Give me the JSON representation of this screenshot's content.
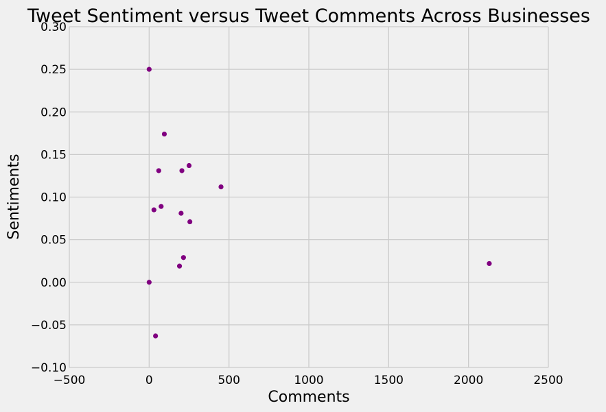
{
  "chart_data": {
    "type": "scatter",
    "title": "Tweet Sentiment versus Tweet Comments Across Businesses",
    "xlabel": "Comments",
    "ylabel": "Sentiments",
    "xlim": [
      -500,
      2500
    ],
    "ylim": [
      -0.1,
      0.3
    ],
    "x_ticks": [
      -500,
      0,
      500,
      1000,
      1500,
      2000,
      2500
    ],
    "x_tick_labels": [
      "−500",
      "0",
      "500",
      "1000",
      "1500",
      "2000",
      "2500"
    ],
    "y_ticks": [
      -0.1,
      -0.05,
      0.0,
      0.05,
      0.1,
      0.15,
      0.2,
      0.25,
      0.3
    ],
    "y_tick_labels": [
      "−0.10",
      "−0.05",
      "0.00",
      "0.05",
      "0.10",
      "0.15",
      "0.20",
      "0.25",
      "0.30"
    ],
    "grid": true,
    "point_color": "#800080",
    "points": [
      {
        "x": 0,
        "y": 0.25
      },
      {
        "x": 95,
        "y": 0.174
      },
      {
        "x": 60,
        "y": 0.131
      },
      {
        "x": 205,
        "y": 0.131
      },
      {
        "x": 250,
        "y": 0.137
      },
      {
        "x": 450,
        "y": 0.112
      },
      {
        "x": 30,
        "y": 0.085
      },
      {
        "x": 75,
        "y": 0.089
      },
      {
        "x": 200,
        "y": 0.081
      },
      {
        "x": 255,
        "y": 0.071
      },
      {
        "x": 215,
        "y": 0.029
      },
      {
        "x": 190,
        "y": 0.019
      },
      {
        "x": 0,
        "y": 0.0
      },
      {
        "x": 40,
        "y": -0.063
      },
      {
        "x": 2130,
        "y": 0.022
      }
    ]
  }
}
